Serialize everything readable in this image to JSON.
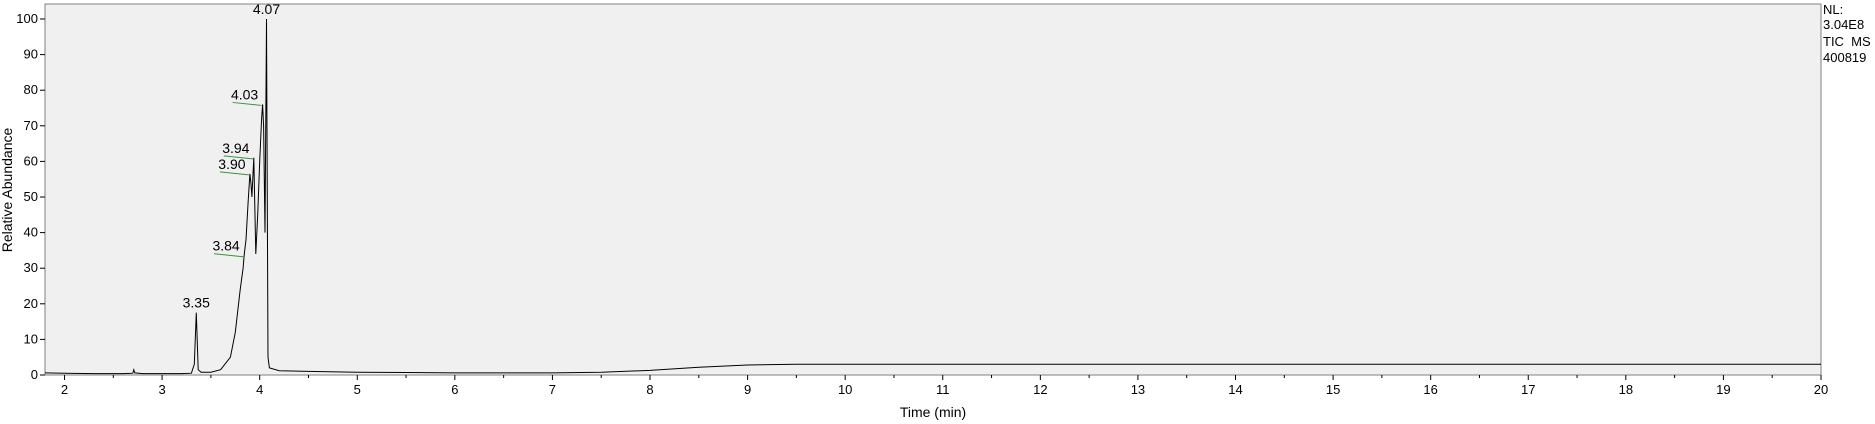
{
  "chart_data": {
    "type": "line",
    "title": "",
    "xlabel": "Time (min)",
    "ylabel": "Relative Abundance",
    "xlim": [
      1.8,
      20
    ],
    "ylim": [
      0,
      100
    ],
    "x_ticks": [
      2,
      3,
      4,
      5,
      6,
      7,
      8,
      9,
      10,
      11,
      12,
      13,
      14,
      15,
      16,
      17,
      18,
      19,
      20
    ],
    "y_ticks": [
      0,
      10,
      20,
      30,
      40,
      50,
      60,
      70,
      80,
      90,
      100
    ],
    "grid": false,
    "legend": "none",
    "colors": {
      "trace": "#000000",
      "plot_bg": "#f0f0f0",
      "label_leader": "#2e9b2e"
    },
    "info": {
      "nl_label": "NL:",
      "nl_value": "3.04E8",
      "scan_filter": "TIC  MS",
      "sample": "400819"
    },
    "peak_labels": [
      {
        "text": "3.35",
        "x": 3.35,
        "y": 17.5
      },
      {
        "text": "3.84",
        "x": 3.84,
        "y": 33.5
      },
      {
        "text": "3.90",
        "x": 3.9,
        "y": 56.5
      },
      {
        "text": "3.94",
        "x": 3.94,
        "y": 61.0
      },
      {
        "text": "4.03",
        "x": 4.03,
        "y": 76.0
      },
      {
        "text": "4.07",
        "x": 4.07,
        "y": 100
      }
    ],
    "series": [
      {
        "points": [
          [
            1.8,
            0.6
          ],
          [
            2.0,
            0.5
          ],
          [
            2.3,
            0.4
          ],
          [
            2.6,
            0.4
          ],
          [
            2.7,
            0.5
          ],
          [
            2.71,
            1.5
          ],
          [
            2.72,
            0.6
          ],
          [
            2.8,
            0.4
          ],
          [
            3.0,
            0.4
          ],
          [
            3.2,
            0.4
          ],
          [
            3.3,
            0.5
          ],
          [
            3.33,
            3.0
          ],
          [
            3.35,
            17.5
          ],
          [
            3.37,
            1.5
          ],
          [
            3.4,
            0.8
          ],
          [
            3.5,
            0.8
          ],
          [
            3.6,
            1.5
          ],
          [
            3.7,
            5.0
          ],
          [
            3.75,
            12.0
          ],
          [
            3.8,
            24.0
          ],
          [
            3.83,
            30.0
          ],
          [
            3.84,
            33.5
          ],
          [
            3.86,
            38.0
          ],
          [
            3.88,
            48.0
          ],
          [
            3.9,
            56.5
          ],
          [
            3.91,
            54.0
          ],
          [
            3.92,
            50.0
          ],
          [
            3.94,
            61.0
          ],
          [
            3.96,
            34.0
          ],
          [
            3.98,
            45.0
          ],
          [
            4.0,
            60.0
          ],
          [
            4.02,
            72.0
          ],
          [
            4.03,
            76.0
          ],
          [
            4.04,
            70.0
          ],
          [
            4.055,
            40.0
          ],
          [
            4.07,
            100.0
          ],
          [
            4.085,
            5.0
          ],
          [
            4.1,
            2.0
          ],
          [
            4.2,
            1.2
          ],
          [
            4.5,
            1.0
          ],
          [
            5.0,
            0.8
          ],
          [
            5.5,
            0.7
          ],
          [
            6.0,
            0.6
          ],
          [
            6.5,
            0.6
          ],
          [
            7.0,
            0.6
          ],
          [
            7.5,
            0.8
          ],
          [
            8.0,
            1.3
          ],
          [
            8.5,
            2.2
          ],
          [
            9.0,
            2.8
          ],
          [
            9.5,
            3.0
          ],
          [
            10.0,
            3.0
          ],
          [
            11.0,
            3.0
          ],
          [
            12.0,
            3.0
          ],
          [
            13.0,
            3.0
          ],
          [
            14.0,
            3.0
          ],
          [
            15.0,
            3.0
          ],
          [
            16.0,
            3.0
          ],
          [
            17.0,
            3.0
          ],
          [
            18.0,
            3.0
          ],
          [
            19.0,
            3.0
          ],
          [
            20.0,
            3.0
          ]
        ]
      }
    ]
  }
}
